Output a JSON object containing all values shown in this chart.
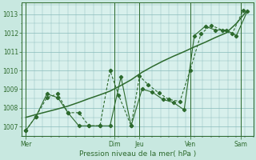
{
  "background_color": "#c8e8e0",
  "plot_bg_color": "#d8f0ec",
  "grid_color": "#88bbbb",
  "line_color": "#2d6a2d",
  "title": "Pression niveau de la mer( hPa )",
  "ylim": [
    1006.5,
    1013.6
  ],
  "yticks": [
    1007,
    1008,
    1009,
    1010,
    1011,
    1012,
    1013
  ],
  "day_labels": [
    "Mer",
    "Dim",
    "Jeu",
    "Ven",
    "Sam"
  ],
  "day_x": [
    0,
    10.5,
    13.5,
    19.5,
    25.5
  ],
  "vline_x": [
    0,
    10.5,
    13.5,
    19.5,
    25.5
  ],
  "xlim": [
    -0.5,
    27
  ],
  "series1_x": [
    0,
    1.2,
    2.5,
    3.8,
    5.0,
    6.3,
    7.5,
    8.8,
    10.0,
    11.3,
    12.5,
    13.8,
    15.0,
    16.3,
    17.5,
    18.8,
    20.0,
    21.3,
    22.5,
    23.8,
    25.0,
    26.3
  ],
  "series1_y": [
    1007.5,
    1007.65,
    1007.8,
    1007.95,
    1008.1,
    1008.3,
    1008.5,
    1008.7,
    1008.9,
    1009.2,
    1009.5,
    1009.9,
    1010.2,
    1010.5,
    1010.75,
    1011.0,
    1011.25,
    1011.5,
    1011.75,
    1012.0,
    1012.5,
    1013.2
  ],
  "series2_x": [
    0,
    1.2,
    2.5,
    3.8,
    5.0,
    6.3,
    7.5,
    8.8,
    10.0,
    11.3,
    12.5,
    13.8,
    15.0,
    16.3,
    17.5,
    18.8,
    20.0,
    21.3,
    22.5,
    23.8,
    25.0,
    26.3
  ],
  "series2_y": [
    1006.8,
    1007.55,
    1008.75,
    1008.55,
    1007.75,
    1007.05,
    1007.05,
    1007.05,
    1007.05,
    1009.65,
    1007.05,
    1009.0,
    1008.85,
    1008.45,
    1008.3,
    1007.9,
    1011.85,
    1012.35,
    1012.15,
    1012.15,
    1011.85,
    1013.15
  ],
  "series3_x": [
    0,
    1.2,
    2.5,
    3.8,
    5.0,
    6.3,
    7.5,
    8.8,
    10.0,
    11.0,
    12.5,
    13.5,
    14.5,
    15.8,
    17.0,
    18.3,
    19.5,
    20.8,
    22.0,
    23.3,
    24.5,
    25.8
  ],
  "series3_y": [
    1006.8,
    1007.55,
    1008.55,
    1008.75,
    1007.75,
    1007.75,
    1007.05,
    1007.05,
    1010.0,
    1008.7,
    1007.05,
    1009.7,
    1009.25,
    1008.8,
    1008.45,
    1008.35,
    1010.0,
    1011.95,
    1012.4,
    1012.15,
    1011.95,
    1013.2
  ]
}
